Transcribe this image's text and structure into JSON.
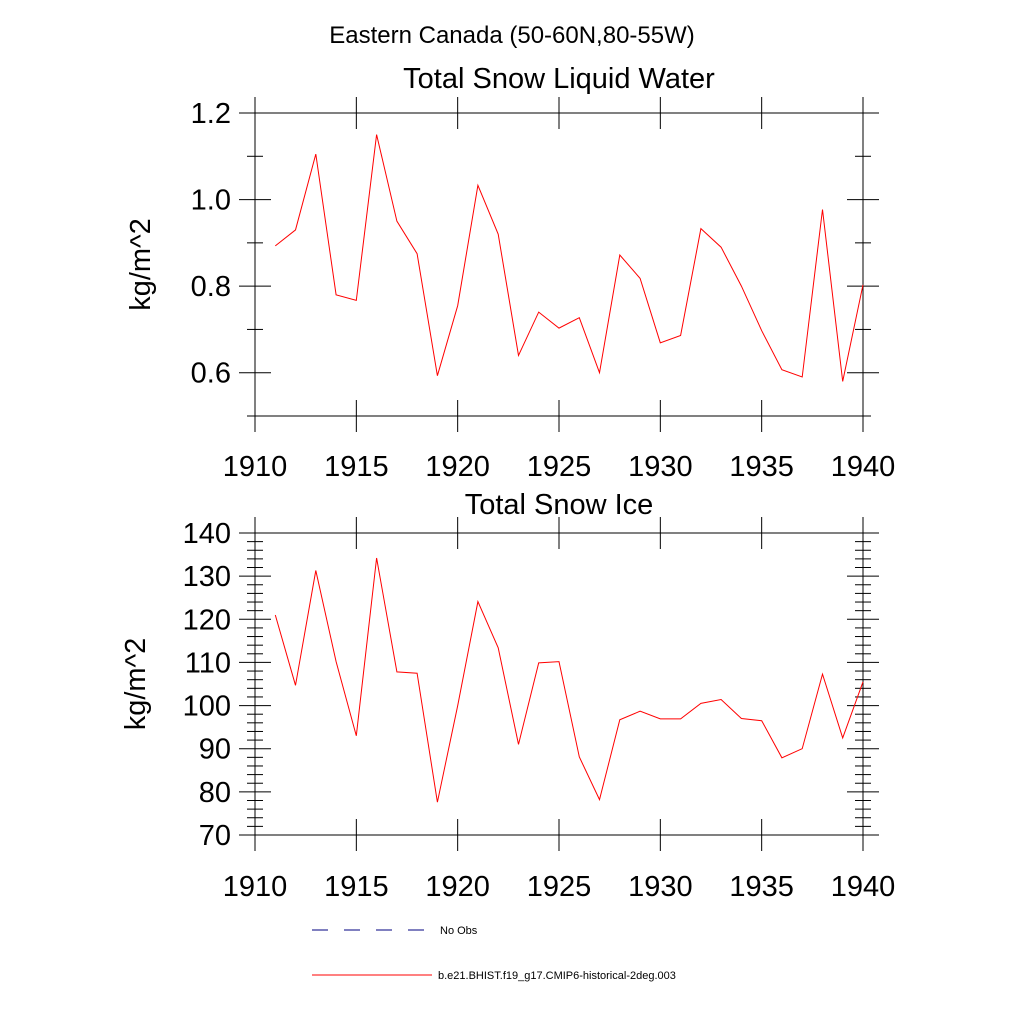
{
  "supertitle": "Eastern Canada (50-60N,80-55W)",
  "colors": {
    "series": "#ff0000",
    "no_obs": "#000080",
    "axes": "#000000"
  },
  "legend": {
    "position": "bottom",
    "entries": [
      {
        "label": "No Obs",
        "style": "dashed",
        "color": "#000080"
      },
      {
        "label": "b.e21.BHIST.f19_g17.CMIP6-historical-2deg.003",
        "style": "solid",
        "color": "#ff0000"
      }
    ]
  },
  "chart_data": [
    {
      "type": "line",
      "title": "Total Snow Liquid Water",
      "xlabel": "",
      "ylabel": "kg/m^2",
      "xlim": [
        1910,
        1940
      ],
      "ylim": [
        0.5,
        1.2
      ],
      "xticks": [
        1910,
        1915,
        1920,
        1925,
        1930,
        1935,
        1940
      ],
      "xtick_labels": [
        "1910",
        "1915",
        "1920",
        "1925",
        "1930",
        "1935",
        "1940"
      ],
      "yticks": [
        0.6,
        0.8,
        1.0,
        1.2
      ],
      "ytick_labels": [
        "0.6",
        "0.8",
        "1.0",
        "1.2"
      ],
      "yminor_step": 0.1,
      "x": [
        1911,
        1912,
        1913,
        1914,
        1915,
        1916,
        1917,
        1918,
        1919,
        1920,
        1921,
        1922,
        1923,
        1924,
        1925,
        1926,
        1927,
        1928,
        1929,
        1930,
        1931,
        1932,
        1933,
        1934,
        1935,
        1936,
        1937,
        1938,
        1939,
        1940
      ],
      "series": [
        {
          "values": [
            0.893,
            0.93,
            1.105,
            0.78,
            0.767,
            1.15,
            0.95,
            0.875,
            0.593,
            0.755,
            1.033,
            0.92,
            0.64,
            0.74,
            0.703,
            0.727,
            0.6,
            0.872,
            0.818,
            0.669,
            0.686,
            0.933,
            0.89,
            0.8,
            0.697,
            0.607,
            0.59,
            0.977,
            0.58,
            0.803
          ]
        }
      ]
    },
    {
      "type": "line",
      "title": "Total Snow Ice",
      "xlabel": "",
      "ylabel": "kg/m^2",
      "xlim": [
        1910,
        1940
      ],
      "ylim": [
        70,
        140
      ],
      "xticks": [
        1910,
        1915,
        1920,
        1925,
        1930,
        1935,
        1940
      ],
      "xtick_labels": [
        "1910",
        "1915",
        "1920",
        "1925",
        "1930",
        "1935",
        "1940"
      ],
      "yticks": [
        70,
        80,
        90,
        100,
        110,
        120,
        130,
        140
      ],
      "ytick_labels": [
        "70",
        "80",
        "90",
        "100",
        "110",
        "120",
        "130",
        "140"
      ],
      "yminor_step": 2,
      "x": [
        1911,
        1912,
        1913,
        1914,
        1915,
        1916,
        1917,
        1918,
        1919,
        1920,
        1921,
        1922,
        1923,
        1924,
        1925,
        1926,
        1927,
        1928,
        1929,
        1930,
        1931,
        1932,
        1933,
        1934,
        1935,
        1936,
        1937,
        1938,
        1939,
        1940
      ],
      "series": [
        {
          "values": [
            121.0,
            104.7,
            131.3,
            110.2,
            93.0,
            134.2,
            107.8,
            107.5,
            77.6,
            100.0,
            124.1,
            113.4,
            91.0,
            109.9,
            110.2,
            88.1,
            78.2,
            96.7,
            98.7,
            96.9,
            96.9,
            100.5,
            101.4,
            97.0,
            96.5,
            87.9,
            90.0,
            107.3,
            92.5,
            105.5
          ]
        }
      ]
    }
  ]
}
